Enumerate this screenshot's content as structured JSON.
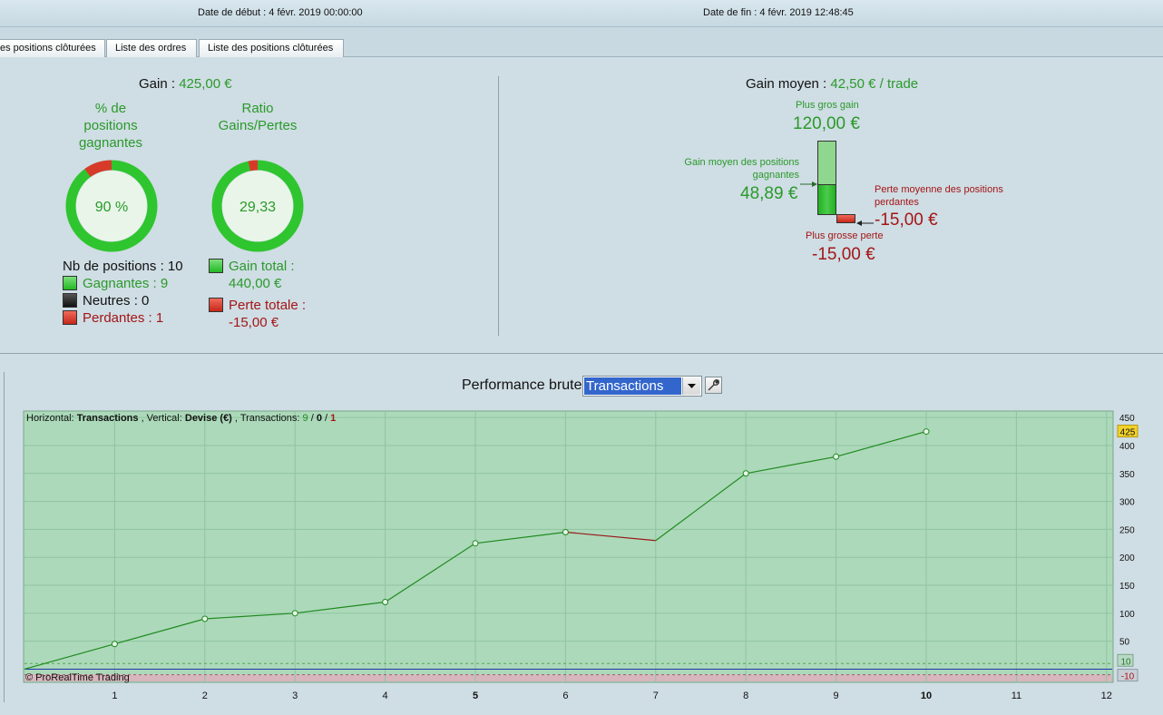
{
  "header": {
    "start_date": "Date de début :  4 févr. 2019 00:00:00",
    "end_date": "Date de fin :  4 févr. 2019 12:48:45"
  },
  "tabs": [
    "es positions clôturées",
    "Liste des ordres",
    "Liste des positions clôturées"
  ],
  "summary": {
    "gain_label": "Gain",
    "gain_value": "425,00 €",
    "pct_title_1": "% de",
    "pct_title_2": "positions",
    "pct_title_3": "gagnantes",
    "pct_value": "90 %",
    "pct_fraction": 0.9,
    "ratio_title_1": "Ratio",
    "ratio_title_2": "Gains/Pertes",
    "ratio_value": "29,33",
    "ratio_fraction": 0.967,
    "nb_positions": "Nb de positions : 10",
    "gagnantes": "Gagnantes : 9",
    "neutres": "Neutres : 0",
    "perdantes": "Perdantes : 1",
    "gain_total_label": "Gain total :",
    "gain_total_value": "440,00 €",
    "perte_totale_label": "Perte totale :",
    "perte_totale_value": "-15,00 €"
  },
  "average": {
    "gain_moyen_label": "Gain moyen",
    "gain_moyen_value": "42,50 € / trade",
    "plus_gros_gain_label": "Plus gros gain",
    "plus_gros_gain_value": "120,00 €",
    "gain_moyen_gagnantes_label_1": "Gain moyen des positions",
    "gain_moyen_gagnantes_label_2": "gagnantes",
    "gain_moyen_gagnantes_value": "48,89 €",
    "perte_moyenne_label_1": "Perte moyenne des positions",
    "perte_moyenne_label_2": "perdantes",
    "perte_moyenne_value": "-15,00 €",
    "plus_grosse_perte_label": "Plus grosse perte",
    "plus_grosse_perte_value": "-15,00 €"
  },
  "chart_controls": {
    "title": "Performance brute",
    "mode": "Transactions"
  },
  "colors": {
    "win": "#2a9a2a",
    "loss": "#a31616",
    "chart_bg": "#acd9ba",
    "neg_zone": "#d8b6bd",
    "line_up": "#1f8a1f",
    "line_down": "#9a1a1a"
  },
  "chart_data": {
    "type": "line",
    "info_prefix": "Horizontal:",
    "info_h": "Transactions",
    "info_mid": ", Vertical:",
    "info_v": "Devise (€)",
    "info_tr": ", Transactions:",
    "info_win": "9",
    "info_slash1": " / ",
    "info_neutral": "0",
    "info_slash2": " / ",
    "info_loss": "1",
    "copyright": "© ProRealTime Trading",
    "x": [
      0,
      1,
      2,
      3,
      4,
      5,
      6,
      7,
      8,
      9,
      10
    ],
    "y": [
      0,
      45,
      90,
      100,
      120,
      225,
      245,
      230,
      350,
      380,
      425
    ],
    "loss_segment": [
      6,
      7
    ],
    "xlim": [
      0,
      12
    ],
    "ylim": [
      -22,
      460
    ],
    "x_ticks": [
      "1",
      "2",
      "3",
      "4",
      "5",
      "6",
      "7",
      "8",
      "9",
      "10",
      "11",
      "12"
    ],
    "x_bold_ticks": [
      "5",
      "10"
    ],
    "y_ticks": [
      "50",
      "100",
      "150",
      "200",
      "250",
      "300",
      "350",
      "400",
      "450"
    ],
    "last_value_label": "425",
    "upper_ref": 10,
    "upper_ref_label": "10",
    "lower_ref": -10,
    "lower_ref_label": "-10",
    "grid": true
  }
}
